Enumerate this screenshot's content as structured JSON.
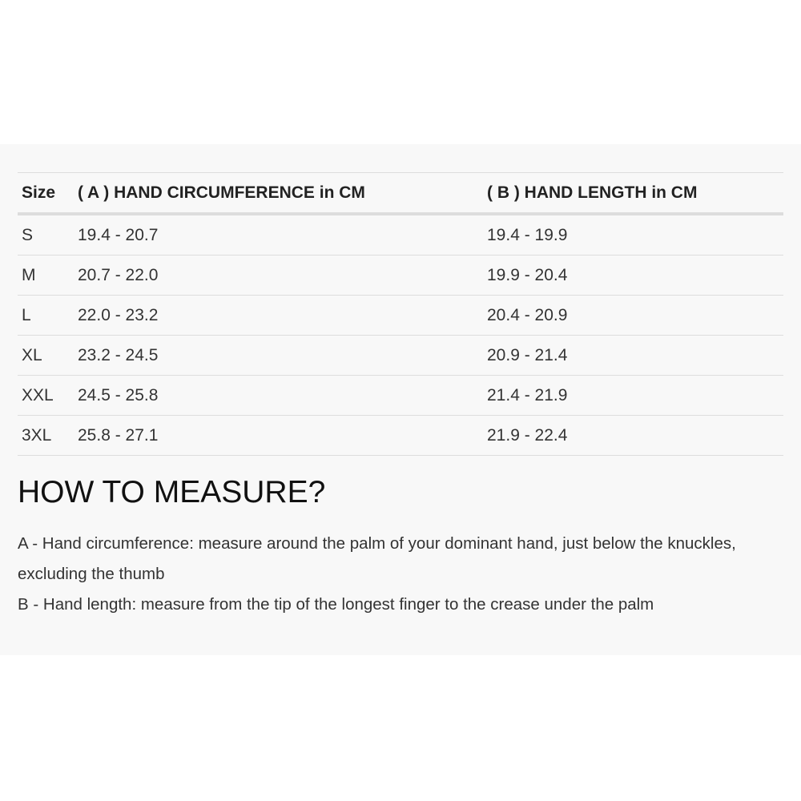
{
  "table": {
    "headers": [
      "Size",
      "( A ) HAND CIRCUMFERENCE in CM",
      "( B ) HAND LENGTH in CM"
    ],
    "rows": [
      [
        "S",
        "19.4 - 20.7",
        "19.4 - 19.9"
      ],
      [
        "M",
        "20.7 - 22.0",
        "19.9 - 20.4"
      ],
      [
        "L",
        "22.0 - 23.2",
        "20.4 - 20.9"
      ],
      [
        "XL",
        "23.2 - 24.5",
        "20.9 - 21.4"
      ],
      [
        "XXL",
        "24.5 - 25.8",
        "21.4 - 21.9"
      ],
      [
        "3XL",
        "25.8 - 27.1",
        "21.9 - 22.4"
      ]
    ]
  },
  "measure": {
    "title": "HOW TO MEASURE?",
    "a": "A - Hand circumference: measure around the palm of your dominant hand, just below the knuckles, excluding the thumb",
    "b": "B - Hand length: measure from the tip of the longest finger to the crease under the palm"
  }
}
